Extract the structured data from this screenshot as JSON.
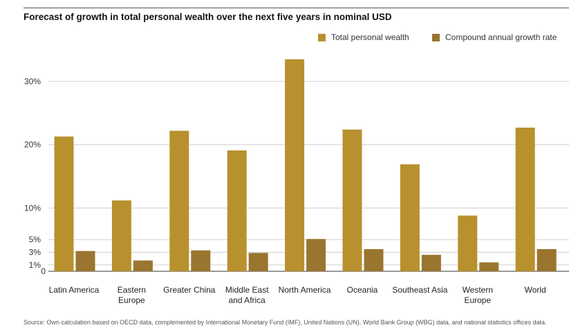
{
  "chart_data": {
    "type": "bar",
    "title": "Forecast of growth in total personal wealth over the next five years in nominal USD",
    "categories": [
      [
        "Latin America"
      ],
      [
        "Eastern",
        "Europe"
      ],
      [
        "Greater China"
      ],
      [
        "Middle East",
        "and Africa"
      ],
      [
        "North America"
      ],
      [
        "Oceania"
      ],
      [
        "Southeast Asia"
      ],
      [
        "Western",
        "Europe"
      ],
      [
        "World"
      ]
    ],
    "series": [
      {
        "name": "Total personal wealth",
        "color": "#b8912e",
        "values": [
          21.3,
          11.2,
          22.2,
          19.1,
          33.5,
          22.4,
          16.9,
          8.8,
          22.7
        ]
      },
      {
        "name": "Compound annual growth rate",
        "color": "#9a7530",
        "values": [
          3.2,
          1.7,
          3.3,
          2.9,
          5.1,
          3.5,
          2.6,
          1.4,
          3.5
        ]
      }
    ],
    "yticks": [
      {
        "value": 0,
        "label": "0"
      },
      {
        "value": 1,
        "label": "1%"
      },
      {
        "value": 3,
        "label": "3%"
      },
      {
        "value": 5,
        "label": "5%"
      },
      {
        "value": 10,
        "label": "10%"
      },
      {
        "value": 20,
        "label": "20%"
      },
      {
        "value": 30,
        "label": "30%"
      }
    ],
    "ylim": [
      0,
      35
    ],
    "xlabel": "",
    "ylabel": "",
    "grid": true,
    "legend_position": "top-right"
  },
  "source": "Source: Own calculation based on OECD data, complemented by International Monetary Fund (IMF), United Nations (UN), World Bank Group (WBG) data, and national statistics offices data."
}
